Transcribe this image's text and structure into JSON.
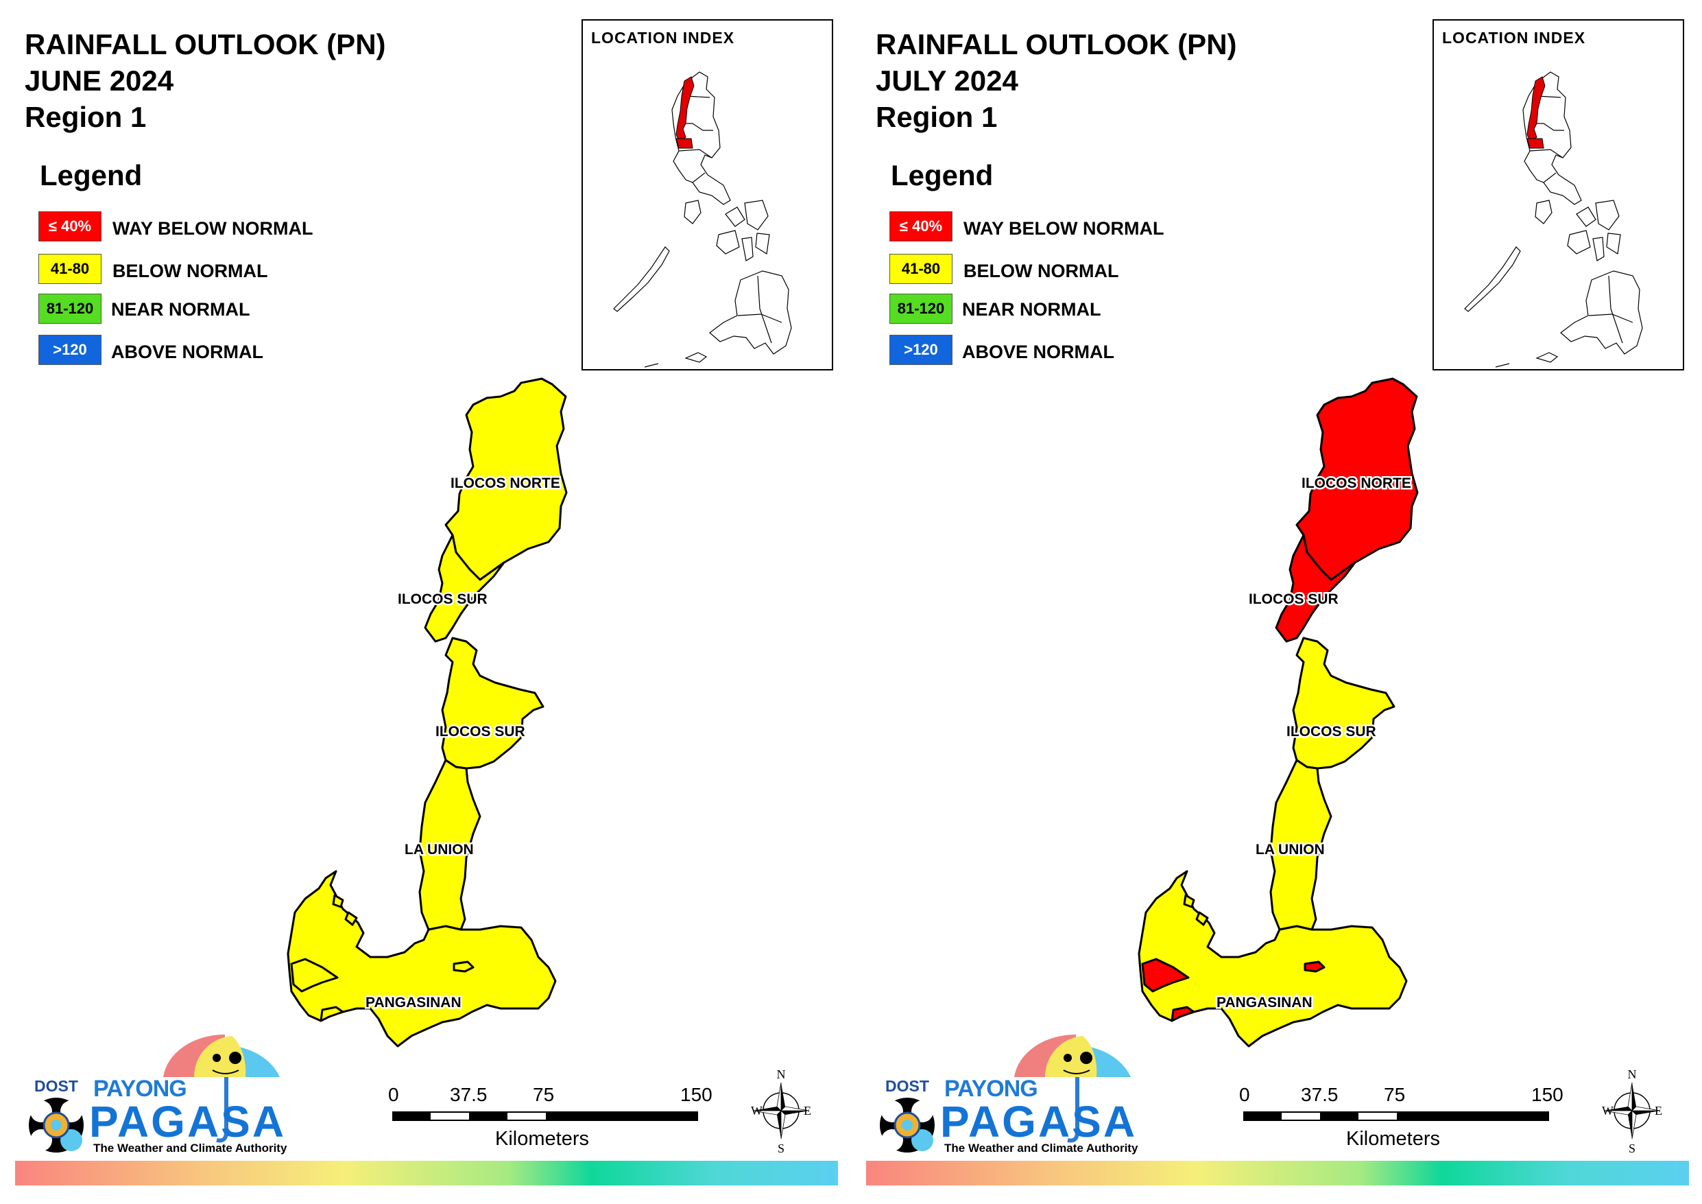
{
  "colors": {
    "way_below": "#ff0000",
    "below": "#ffff00",
    "near": "#55dd22",
    "above": "#1166dd"
  },
  "panels": [
    {
      "title": [
        "RAINFALL OUTLOOK (PN)",
        "JUNE 2024",
        "Region 1"
      ],
      "legend_title": "Legend",
      "legend": [
        {
          "swatch": "≤ 40%",
          "label": "WAY BELOW NORMAL",
          "color": "#ff0000",
          "text_color": "#ffffff"
        },
        {
          "swatch": "41-80",
          "label": "BELOW NORMAL",
          "color": "#ffff00",
          "text_color": "#000000"
        },
        {
          "swatch": "81-120",
          "label": "NEAR NORMAL",
          "color": "#55dd22",
          "text_color": "#000000"
        },
        {
          "swatch": ">120",
          "label": "ABOVE NORMAL",
          "color": "#1166dd",
          "text_color": "#ffffff"
        }
      ],
      "location_index_title": "LOCATION INDEX",
      "province_labels": [
        "ILOCOS NORTE",
        "ILOCOS SUR",
        "ILOCOS SUR",
        "LA UNION",
        "PANGASINAN"
      ],
      "province_fill": {
        "ilocos_norte": "#ffff00",
        "ilocos_sur_north": "#ffff00",
        "ilocos_sur_south": "#ffff00",
        "la_union": "#ffff00",
        "pangasinan": "#ffff00",
        "pangasinan_patch_west": "#ffff00",
        "pangasinan_patch_center": "#ffff00"
      },
      "scale": {
        "ticks": [
          "0",
          "37.5",
          "75",
          "150"
        ],
        "unit": "Kilometers"
      },
      "compass": {
        "n": "N",
        "s": "S",
        "e": "E",
        "w": "W"
      },
      "logo": {
        "dost": "DOST",
        "payong": "PAYONG",
        "pagasa": "PAGASA",
        "tagline": "The Weather and Climate Authority"
      }
    },
    {
      "title": [
        "RAINFALL OUTLOOK (PN)",
        "JULY 2024",
        "Region 1"
      ],
      "legend_title": "Legend",
      "legend": [
        {
          "swatch": "≤ 40%",
          "label": "WAY BELOW NORMAL",
          "color": "#ff0000",
          "text_color": "#ffffff"
        },
        {
          "swatch": "41-80",
          "label": "BELOW NORMAL",
          "color": "#ffff00",
          "text_color": "#000000"
        },
        {
          "swatch": "81-120",
          "label": "NEAR NORMAL",
          "color": "#55dd22",
          "text_color": "#000000"
        },
        {
          "swatch": ">120",
          "label": "ABOVE NORMAL",
          "color": "#1166dd",
          "text_color": "#ffffff"
        }
      ],
      "location_index_title": "LOCATION INDEX",
      "province_labels": [
        "ILOCOS NORTE",
        "ILOCOS SUR",
        "ILOCOS SUR",
        "LA UNION",
        "PANGASINAN"
      ],
      "province_fill": {
        "ilocos_norte": "#ff0000",
        "ilocos_sur_north": "#ff0000",
        "ilocos_sur_south": "#ffff00",
        "la_union": "#ffff00",
        "pangasinan": "#ffff00",
        "pangasinan_patch_west": "#ff0000",
        "pangasinan_patch_center": "#ff0000"
      },
      "scale": {
        "ticks": [
          "0",
          "37.5",
          "75",
          "150"
        ],
        "unit": "Kilometers"
      },
      "compass": {
        "n": "N",
        "s": "S",
        "e": "E",
        "w": "W"
      },
      "logo": {
        "dost": "DOST",
        "payong": "PAYONG",
        "pagasa": "PAGASA",
        "tagline": "The Weather and Climate Authority"
      }
    }
  ]
}
